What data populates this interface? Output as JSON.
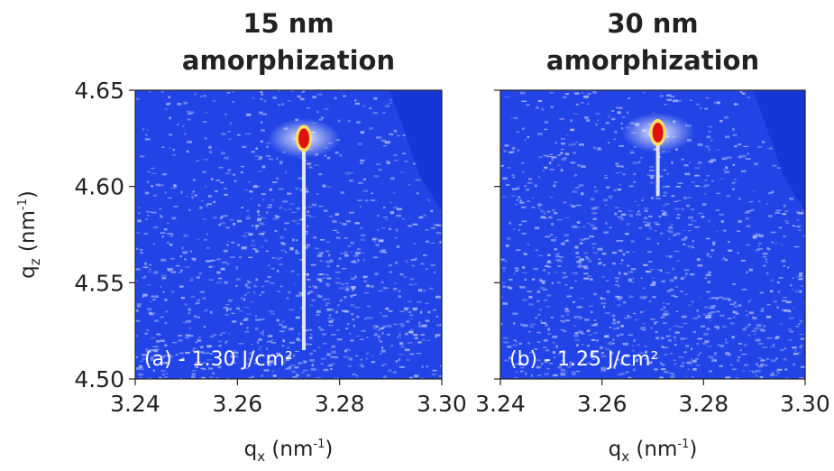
{
  "chart_data": [
    {
      "type": "heatmap",
      "title": [
        "15 nm",
        "amorphization"
      ],
      "annotation": "(a) - 1.30 J/cm²",
      "x_label": {
        "main": "q",
        "sub": "x",
        "rest": " (nm",
        "sup": "-1",
        "end": ")"
      },
      "y_label": {
        "main": "q",
        "sub": "z",
        "rest": " (nm",
        "sup": "-1",
        "end": ")"
      },
      "xlim": [
        3.24,
        3.3
      ],
      "xticks": [
        3.24,
        3.26,
        3.28,
        {
          "value": 3.3,
          "label": "3.30"
        }
      ],
      "ylim": [
        4.5,
        4.65
      ],
      "yticks": [
        {
          "value": 4.5,
          "label": "4.50"
        },
        4.55,
        {
          "value": 4.6,
          "label": "4.60"
        },
        4.65
      ],
      "show_ytick_labels": true,
      "peak": {
        "x": 3.273,
        "y": 4.625
      },
      "streak": {
        "x": 3.273,
        "y": [
          4.515,
          4.625
        ]
      },
      "color": "#2244e6"
    },
    {
      "type": "heatmap",
      "title": [
        "30 nm",
        "amorphization"
      ],
      "annotation": "(b) - 1.25 J/cm²",
      "x_label": {
        "main": "q",
        "sub": "x",
        "rest": " (nm",
        "sup": "-1",
        "end": ")"
      },
      "xlim": [
        3.24,
        3.3
      ],
      "xticks": [
        3.24,
        3.26,
        3.28,
        {
          "value": 3.3,
          "label": "3.30"
        }
      ],
      "ylim": [
        4.5,
        4.65
      ],
      "yticks": [
        {
          "value": 4.5,
          "label": "4.50"
        },
        4.55,
        {
          "value": 4.6,
          "label": "4.60"
        },
        4.65
      ],
      "show_ytick_labels": false,
      "peak": {
        "x": 3.271,
        "y": 4.628
      },
      "streak": {
        "x": 3.271,
        "y": [
          4.595,
          4.628
        ]
      },
      "color": "#2244e6"
    }
  ]
}
